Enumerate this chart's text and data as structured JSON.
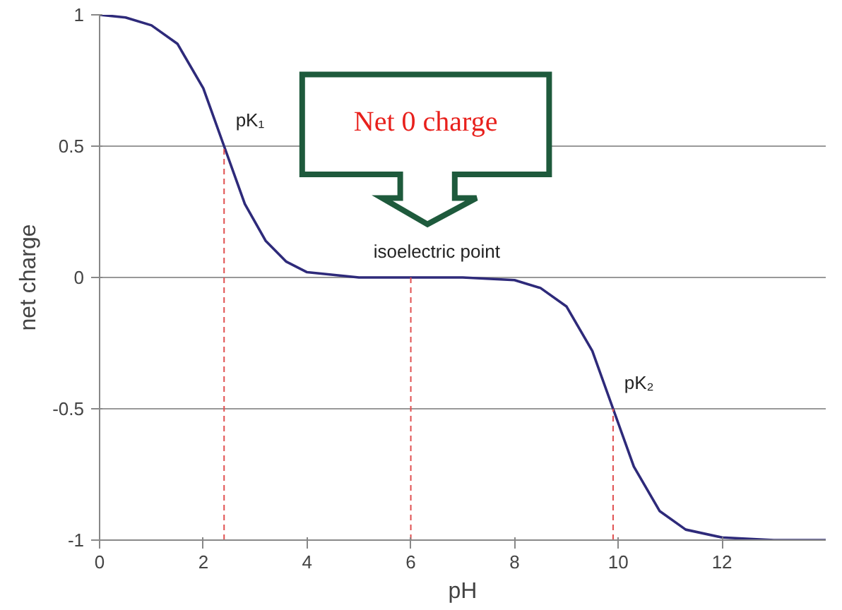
{
  "chart_data": {
    "type": "line",
    "xlabel": "pH",
    "ylabel": "net charge",
    "x": [
      0,
      0.5,
      1,
      1.5,
      2,
      2.4,
      2.8,
      3.2,
      3.6,
      4,
      4.5,
      5,
      6,
      7,
      8,
      8.5,
      9,
      9.5,
      9.9,
      10.3,
      10.8,
      11.3,
      12,
      13,
      14
    ],
    "series": [
      {
        "color": "#2e2a7a",
        "values": [
          1.0,
          0.99,
          0.96,
          0.89,
          0.72,
          0.5,
          0.28,
          0.14,
          0.06,
          0.02,
          0.01,
          0.0,
          0.0,
          0.0,
          -0.01,
          -0.04,
          -0.11,
          -0.28,
          -0.5,
          -0.72,
          -0.89,
          -0.96,
          -0.99,
          -1.0,
          -1.0
        ]
      }
    ],
    "xlim": [
      0,
      14
    ],
    "xticks": [
      0,
      2,
      4,
      6,
      8,
      10,
      12
    ],
    "ylim": [
      -1,
      1
    ],
    "yticks": [
      -1,
      -0.5,
      0,
      0.5,
      1
    ],
    "grid": "y",
    "marker": "none",
    "line_style": "solid",
    "ref_lines": [
      {
        "axis": "x",
        "value": 2.4,
        "label": "pK₁",
        "color": "#e05050",
        "line_style": "dashed"
      },
      {
        "axis": "x",
        "value": 6,
        "label": "isoelectric point",
        "color": "#e05050",
        "line_style": "dashed"
      },
      {
        "axis": "x",
        "value": 9.9,
        "label": "pK₂",
        "color": "#e05050",
        "line_style": "dashed"
      }
    ],
    "annotations": [
      "Net 0 charge"
    ]
  }
}
